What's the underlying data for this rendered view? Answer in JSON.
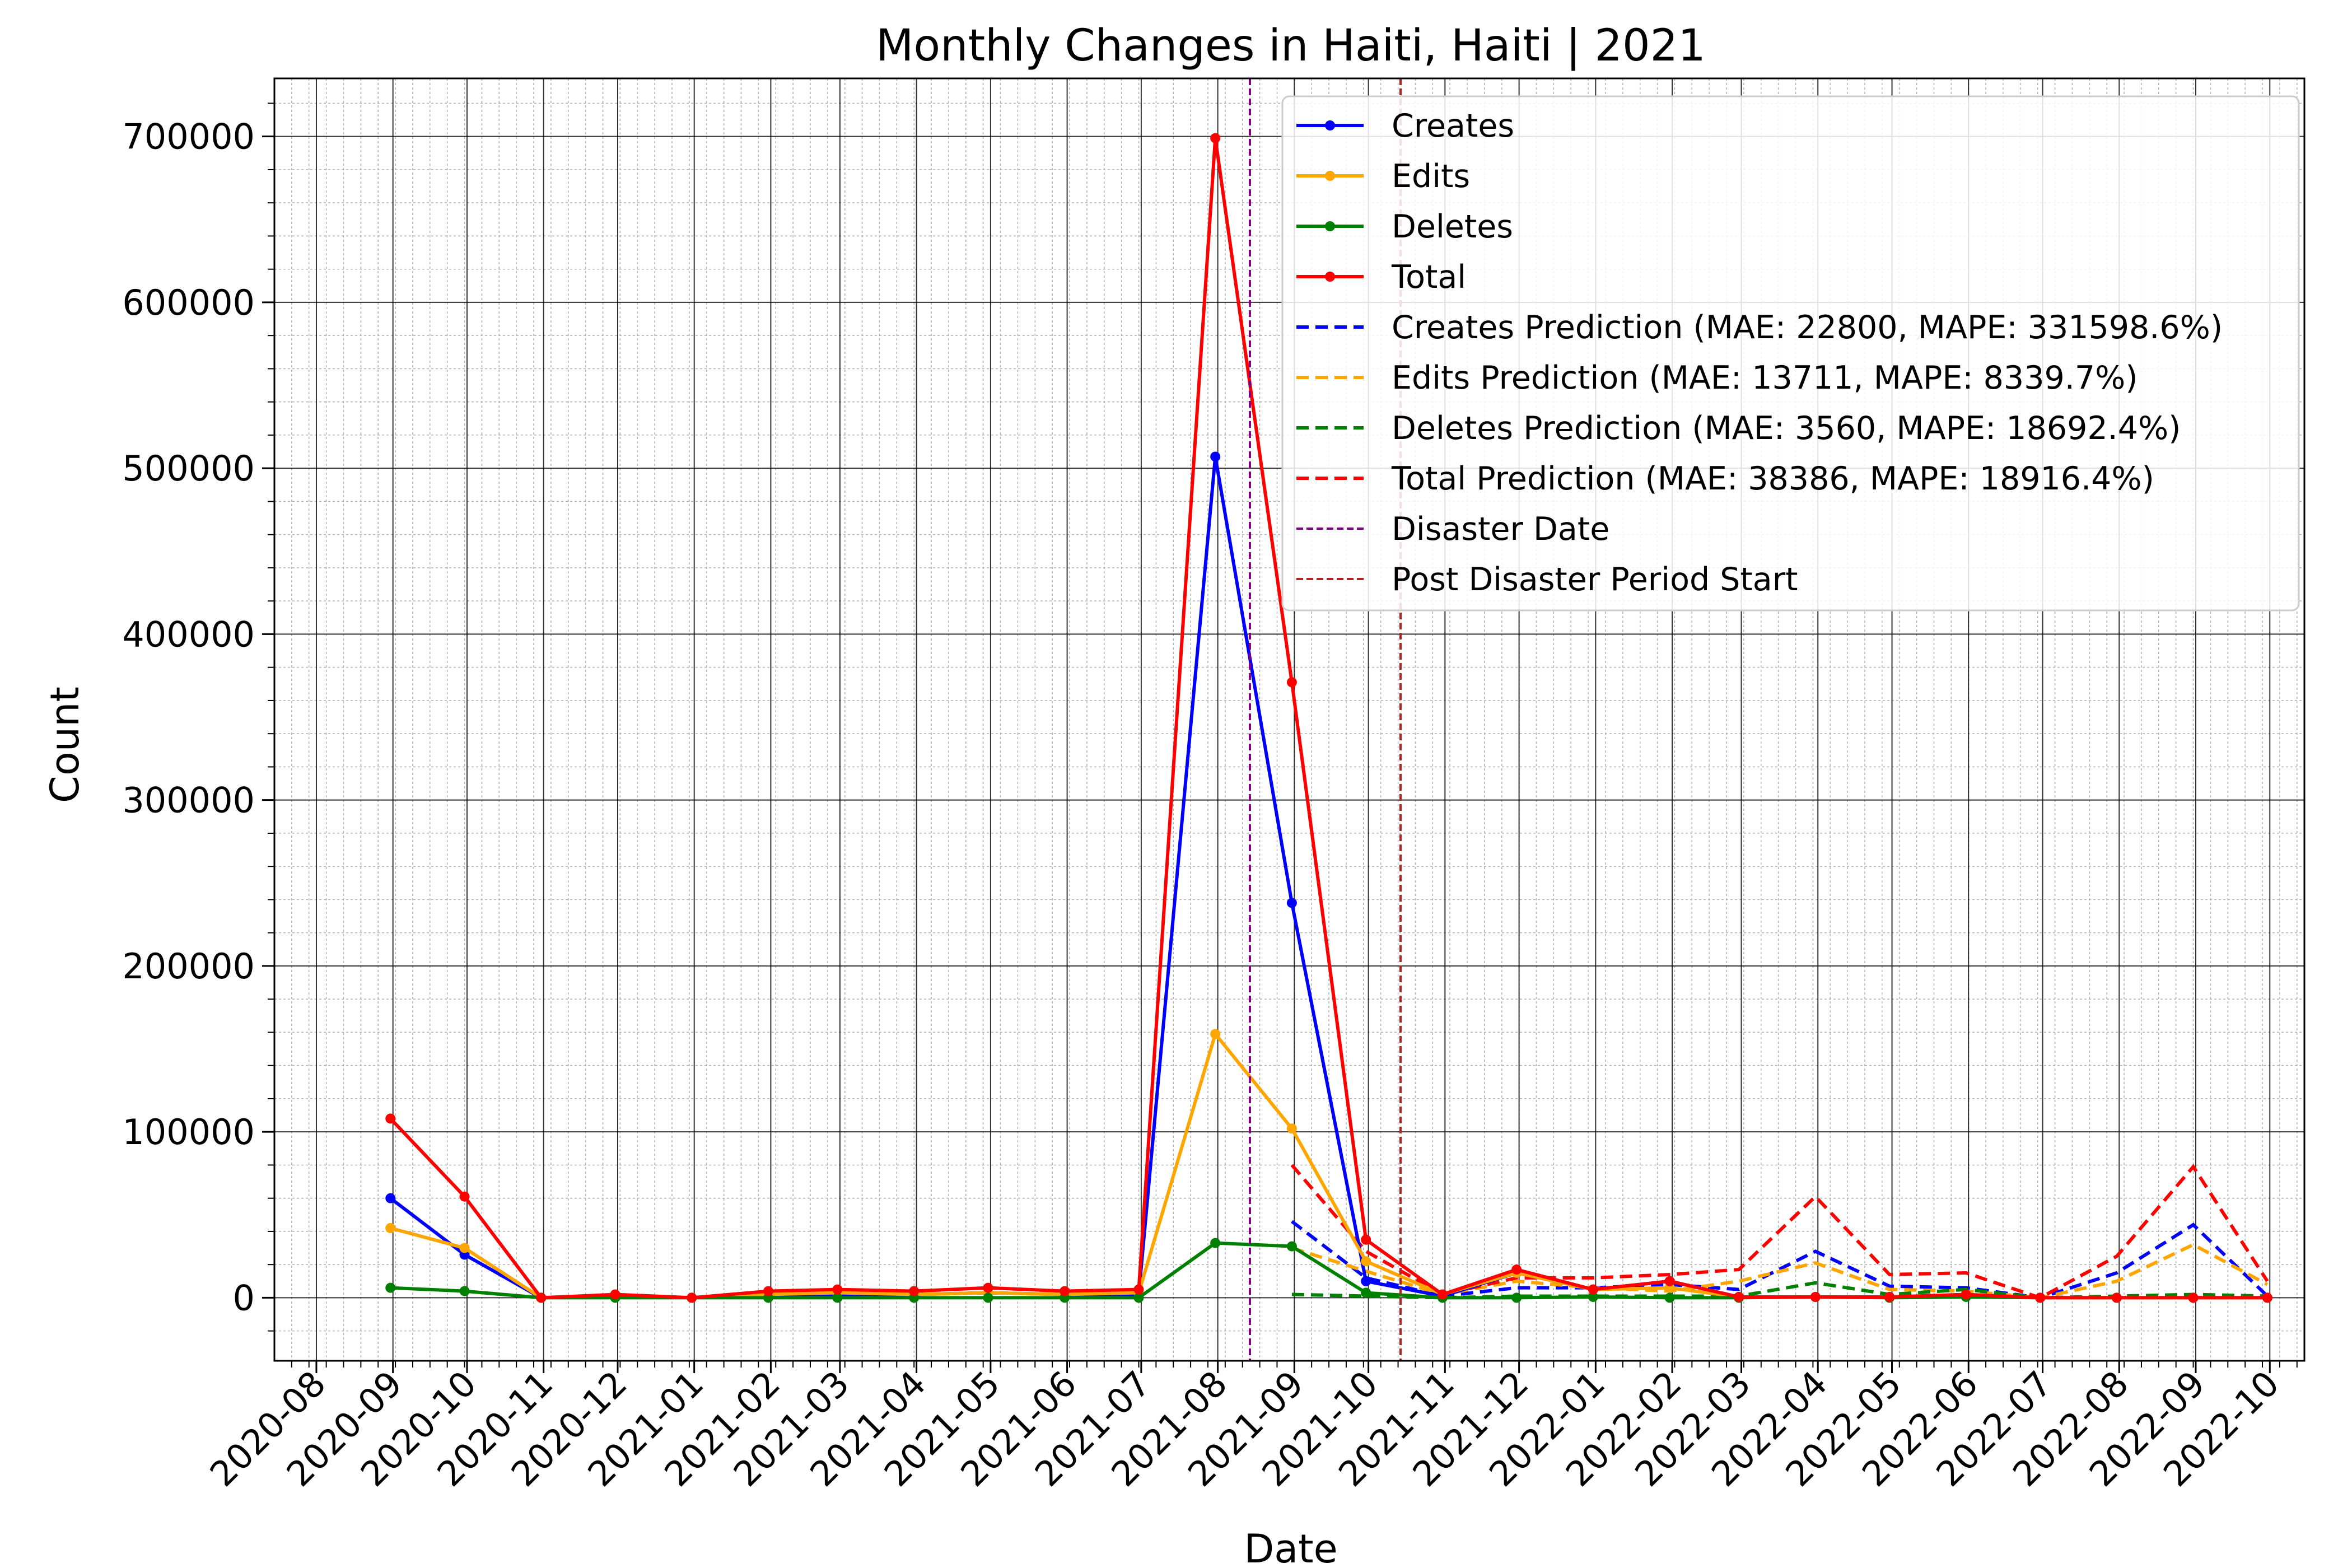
{
  "chart_data": {
    "type": "line",
    "title": "Monthly Changes in Haiti, Haiti | 2021",
    "xlabel": "Date",
    "ylabel": "Count",
    "xlim": [
      "2020-07-15",
      "2022-10-15"
    ],
    "ylim": [
      -38000,
      735000
    ],
    "y_ticks": [
      0,
      100000,
      200000,
      300000,
      400000,
      500000,
      600000,
      700000
    ],
    "x_ticks": [
      "2020-08",
      "2020-09",
      "2020-10",
      "2020-11",
      "2020-12",
      "2021-01",
      "2021-02",
      "2021-03",
      "2021-04",
      "2021-05",
      "2021-06",
      "2021-07",
      "2021-08",
      "2021-09",
      "2021-10",
      "2021-11",
      "2021-12",
      "2022-01",
      "2022-02",
      "2022-03",
      "2022-04",
      "2022-05",
      "2022-06",
      "2022-07",
      "2022-08",
      "2022-09",
      "2022-10"
    ],
    "grid": true,
    "legend_position": "top-right",
    "x": [
      "2020-08-31",
      "2020-09-30",
      "2020-10-31",
      "2020-11-30",
      "2020-12-31",
      "2021-01-31",
      "2021-02-28",
      "2021-03-31",
      "2021-04-30",
      "2021-05-31",
      "2021-06-30",
      "2021-07-31",
      "2021-08-31",
      "2021-09-30",
      "2021-10-31",
      "2021-11-30",
      "2021-12-31",
      "2022-01-31",
      "2022-02-28",
      "2022-03-31",
      "2022-04-30",
      "2022-05-31",
      "2022-06-30",
      "2022-07-31",
      "2022-08-31",
      "2022-09-30"
    ],
    "series": [
      {
        "name": "Creates",
        "color": "#0000ff",
        "style": "solid-marker",
        "values": [
          60000,
          26000,
          0,
          1000,
          0,
          2000,
          2000,
          2000,
          3000,
          2000,
          2000,
          507000,
          238000,
          10000,
          1000,
          15000,
          5000,
          10000,
          500,
          500,
          500,
          1000,
          0,
          0,
          0,
          0
        ]
      },
      {
        "name": "Edits",
        "color": "#ffa500",
        "style": "solid-marker",
        "values": [
          42000,
          30000,
          0,
          1000,
          0,
          2000,
          3000,
          2000,
          3000,
          2000,
          3000,
          159000,
          102000,
          22000,
          2000,
          15000,
          5000,
          6000,
          500,
          500,
          500,
          1000,
          0,
          0,
          0,
          0
        ]
      },
      {
        "name": "Deletes",
        "color": "#008000",
        "style": "solid-marker",
        "values": [
          6000,
          4000,
          0,
          0,
          0,
          0,
          0,
          0,
          0,
          0,
          0,
          33000,
          31000,
          3000,
          0,
          0,
          500,
          0,
          0,
          500,
          0,
          500,
          0,
          0,
          0,
          0
        ]
      },
      {
        "name": "Total",
        "color": "#ff0000",
        "style": "solid-marker",
        "values": [
          108000,
          61000,
          0,
          2000,
          0,
          4000,
          5000,
          4000,
          6000,
          4000,
          5000,
          699000,
          371000,
          35000,
          2000,
          17000,
          5000,
          10000,
          500,
          500,
          500,
          2000,
          0,
          0,
          0,
          0
        ]
      }
    ],
    "prediction_x": [
      "2021-08-31",
      "2021-09-30",
      "2021-10-31",
      "2021-11-30",
      "2021-12-31",
      "2022-01-31",
      "2022-02-28",
      "2022-03-31",
      "2022-04-30",
      "2022-05-31",
      "2022-06-30",
      "2022-07-31",
      "2022-08-31",
      "2022-09-30"
    ],
    "predictions": [
      {
        "name": "Creates Prediction (MAE: 22800, MAPE: 331598.6%)",
        "color": "#0000ff",
        "values": [
          46000,
          12000,
          1000,
          6000,
          6000,
          8000,
          5000,
          28000,
          7000,
          6000,
          0,
          15000,
          44000,
          1000
        ]
      },
      {
        "name": "Edits Prediction (MAE: 13711, MAPE: 8339.7%)",
        "color": "#ffa500",
        "values": [
          30000,
          16000,
          2000,
          10000,
          6000,
          4000,
          10000,
          21000,
          5000,
          4000,
          0,
          10000,
          32000,
          8000
        ]
      },
      {
        "name": "Deletes Prediction (MAE: 3560, MAPE: 18692.4%)",
        "color": "#008000",
        "values": [
          2000,
          1000,
          0,
          1000,
          1000,
          1000,
          1000,
          9000,
          2000,
          5000,
          0,
          1000,
          2000,
          1000
        ]
      },
      {
        "name": "Total Prediction (MAE: 38386, MAPE: 18916.4%)",
        "color": "#ff0000",
        "values": [
          80000,
          28000,
          2000,
          12000,
          12000,
          14000,
          17000,
          61000,
          14000,
          15000,
          0,
          25000,
          79000,
          10000
        ]
      }
    ],
    "vlines": [
      {
        "name": "Disaster Date",
        "color": "#800080",
        "x": "2021-08-14"
      },
      {
        "name": "Post Disaster Period Start",
        "color": "#b22222",
        "x": "2021-10-14"
      }
    ]
  }
}
